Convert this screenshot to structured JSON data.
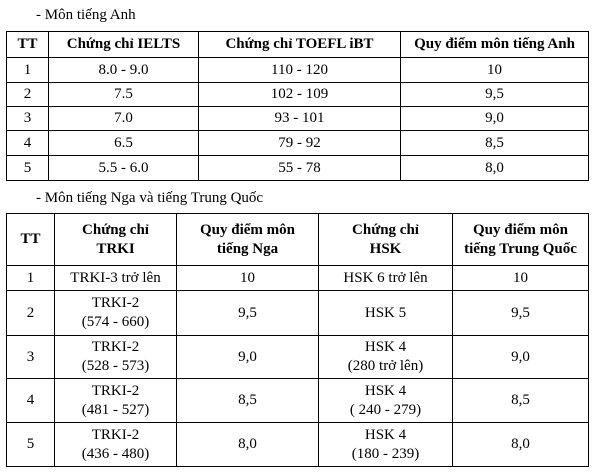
{
  "section1": {
    "heading": "- Môn tiếng Anh",
    "table": {
      "header": [
        "TT",
        "Chứng chỉ IELTS",
        "Chứng chỉ TOEFL iBT",
        "Quy điểm môn tiếng Anh"
      ],
      "rows": [
        [
          "1",
          "8.0 - 9.0",
          "110 - 120",
          "10"
        ],
        [
          "2",
          "7.5",
          "102 - 109",
          "9,5"
        ],
        [
          "3",
          "7.0",
          "93 - 101",
          "9,0"
        ],
        [
          "4",
          "6.5",
          "79 - 92",
          "8,5"
        ],
        [
          "5",
          "5.5 - 6.0",
          "55 - 78",
          "8,0"
        ]
      ]
    }
  },
  "section2": {
    "heading": "- Môn tiếng Nga và tiếng Trung Quốc",
    "table": {
      "header": [
        "TT",
        "Chứng chỉ\nTRKI",
        "Quy điểm môn\ntiếng Nga",
        "Chứng chỉ\nHSK",
        "Quy điểm môn\ntiếng Trung Quốc"
      ],
      "rows": [
        [
          "1",
          "TRKI-3 trở lên",
          "10",
          "HSK 6 trở lên",
          "10"
        ],
        [
          "2",
          "TRKI-2\n(574 - 660)",
          "9,5",
          "HSK 5",
          "9,5"
        ],
        [
          "3",
          "TRKI-2\n(528 - 573)",
          "9,0",
          "HSK 4\n(280 trở lên)",
          "9,0"
        ],
        [
          "4",
          "TRKI-2\n(481 - 527)",
          "8,5",
          "HSK 4\n( 240 - 279)",
          "8,5"
        ],
        [
          "5",
          "TRKI-2\n(436 - 480)",
          "8,0",
          "HSK 4\n(180 - 239)",
          "8,0"
        ]
      ]
    }
  }
}
